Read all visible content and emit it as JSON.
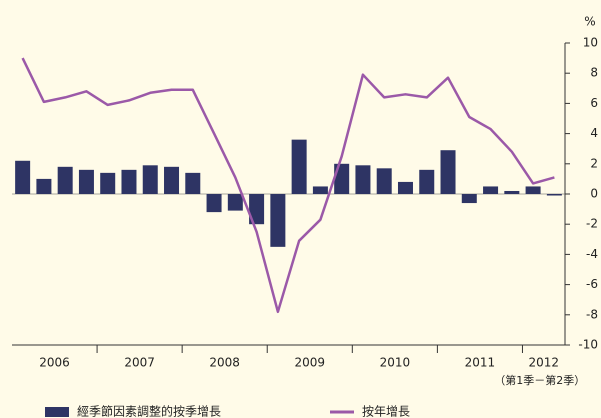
{
  "chart_data": {
    "type": "bar-line",
    "y_unit": "%",
    "categories": [
      null,
      null,
      null,
      null,
      null,
      null,
      null,
      null,
      null,
      null,
      null,
      null,
      null,
      null,
      null,
      null,
      null,
      null,
      null,
      null,
      null,
      null,
      null,
      null,
      null,
      null
    ],
    "groups": [
      "2006",
      "2007",
      "2008",
      "2009",
      "2010",
      "2011",
      "2012"
    ],
    "group_note": "（第1季－第2季）",
    "series": [
      {
        "name": "經季節因素調整的按季增長",
        "kind": "bar",
        "color": "#2e3464",
        "values": [
          2.2,
          1.0,
          1.8,
          1.6,
          1.4,
          1.6,
          1.9,
          1.8,
          1.4,
          -1.2,
          -1.1,
          -2.0,
          -3.5,
          3.6,
          0.5,
          2.0,
          1.9,
          1.7,
          0.8,
          1.6,
          2.9,
          -0.6,
          0.5,
          0.2,
          0.5,
          -0.1
        ]
      },
      {
        "name": "按年增長",
        "kind": "line",
        "color": "#9b59a8",
        "values": [
          9.0,
          6.1,
          6.4,
          6.8,
          5.9,
          6.2,
          6.7,
          6.9,
          6.9,
          4.0,
          1.1,
          -2.5,
          -7.8,
          -3.1,
          -1.7,
          2.5,
          7.9,
          6.4,
          6.6,
          6.4,
          7.7,
          5.1,
          4.3,
          2.8,
          0.7,
          1.1
        ]
      }
    ],
    "ylim": [
      -10,
      10
    ],
    "yticks": [
      -10,
      -8,
      -6,
      -4,
      -2,
      0,
      2,
      4,
      6,
      8,
      10
    ]
  }
}
